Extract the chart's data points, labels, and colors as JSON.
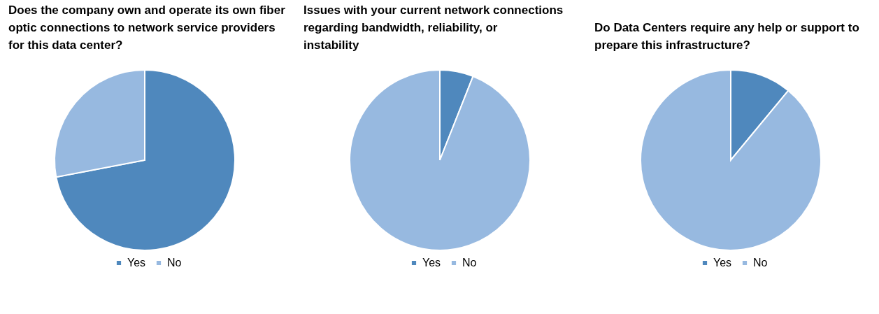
{
  "chart_data": [
    {
      "type": "pie",
      "title": "Does the company own and operate its own fiber optic connections to network service providers for this data center?",
      "categories": [
        "Yes",
        "No"
      ],
      "values": [
        72,
        28
      ],
      "colors": [
        "#4f88bd",
        "#97b9e0"
      ],
      "legend": "bottom"
    },
    {
      "type": "pie",
      "title": "Issues with your current network connections regarding bandwidth, reliability, or instability",
      "categories": [
        "Yes",
        "No"
      ],
      "values": [
        6,
        94
      ],
      "colors": [
        "#4f88bd",
        "#97b9e0"
      ],
      "legend": "bottom"
    },
    {
      "type": "pie",
      "title": "Do Data Centers require any help or support to prepare this infrastructure?",
      "categories": [
        "Yes",
        "No"
      ],
      "values": [
        11,
        89
      ],
      "colors": [
        "#4f88bd",
        "#97b9e0"
      ],
      "legend": "bottom"
    }
  ]
}
